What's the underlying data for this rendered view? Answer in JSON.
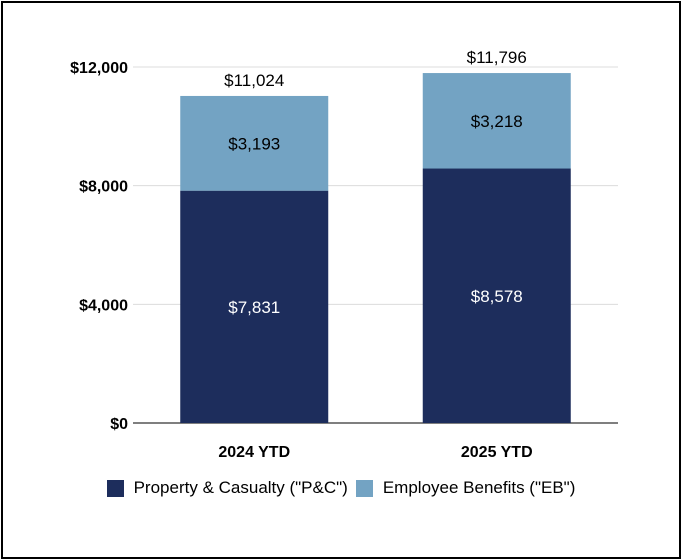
{
  "chart_data": {
    "type": "bar",
    "stacked": true,
    "categories": [
      "2024 YTD",
      "2025 YTD"
    ],
    "series": [
      {
        "name": "Property & Casualty (\"P&C\")",
        "values": [
          7831,
          8578
        ],
        "labels": [
          "$7,831",
          "$8,578"
        ],
        "color": "#1d2d5c",
        "label_color": "#ffffff"
      },
      {
        "name": "Employee Benefits (\"EB\")",
        "values": [
          3193,
          3218
        ],
        "labels": [
          "$3,193",
          "$3,218"
        ],
        "color": "#73a3c3",
        "label_color": "#000000"
      }
    ],
    "totals": [
      11024,
      11796
    ],
    "total_labels": [
      "$11,024",
      "$11,796"
    ],
    "ylim": [
      0,
      12000
    ],
    "yticks": [
      0,
      4000,
      8000,
      12000
    ],
    "ytick_labels": [
      "$0",
      "$4,000",
      "$8,000",
      "$12,000"
    ],
    "grid": true,
    "legend_position": "bottom"
  }
}
